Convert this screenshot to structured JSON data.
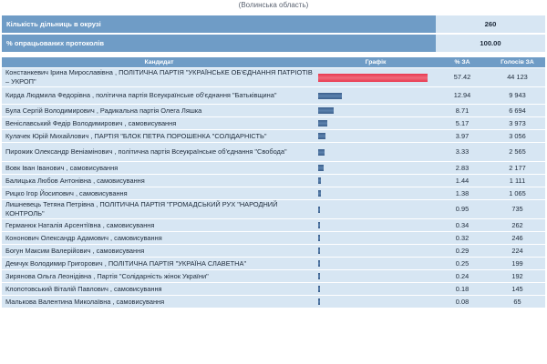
{
  "header": {
    "region": "(Волинська область)"
  },
  "summary": [
    {
      "label": "Кількість дільниць в окрузі",
      "value": "260"
    },
    {
      "label": "% опрацьованих протоколів",
      "value": "100.00"
    }
  ],
  "table": {
    "headers": {
      "candidate": "Кандидат",
      "graph": "Графік",
      "percent": "% ЗА",
      "votes": "Голосів ЗА"
    },
    "rows": [
      {
        "candidate": "Констанкевич Ірина Мирославівна , ПОЛІТИЧНА ПАРТІЯ \"УКРАЇНСЬКЕ ОБ'ЄДНАННЯ ПАТРІОТІВ – УКРОП\"",
        "percent": "57.42",
        "votes": "44 123",
        "share": 57.42,
        "lead": true
      },
      {
        "candidate": "Кирда Людмила Федорівна , політична партія Всеукраїнське об'єднання \"Батьківщина\"",
        "percent": "12.94",
        "votes": "9 943",
        "share": 12.94
      },
      {
        "candidate": "Була Сергій Володимирович , Радикальна партія Олега Ляшка",
        "percent": "8.71",
        "votes": "6 694",
        "share": 8.71
      },
      {
        "candidate": "Веніславський Федір Володимирович , самовисування",
        "percent": "5.17",
        "votes": "3 973",
        "share": 5.17
      },
      {
        "candidate": "Кулачек Юрій Михайлович , ПАРТІЯ \"БЛОК ПЕТРА ПОРОШЕНКА \"СОЛІДАРНІСТЬ\"",
        "percent": "3.97",
        "votes": "3 056",
        "share": 3.97
      },
      {
        "candidate": "Пирожик Олександр Веніамінович , політична партія Всеукраїнське об'єднання \"Свобода\"",
        "percent": "3.33",
        "votes": "2 565",
        "share": 3.33
      },
      {
        "candidate": "Вовк Іван Іванович , самовисування",
        "percent": "2.83",
        "votes": "2 177",
        "share": 2.83
      },
      {
        "candidate": "Балицька Любов Антонівна , самовисування",
        "percent": "1.44",
        "votes": "1 111",
        "share": 1.44
      },
      {
        "candidate": "Рицко Ігор Йосипович , самовисування",
        "percent": "1.38",
        "votes": "1 065",
        "share": 1.38
      },
      {
        "candidate": "Лишневець Тетяна Петрівна , ПОЛІТИЧНА ПАРТІЯ \"ГРОМАДСЬКИЙ РУХ \"НАРОДНИЙ КОНТРОЛЬ\"",
        "percent": "0.95",
        "votes": "735",
        "share": 0.95
      },
      {
        "candidate": "Германюк Наталія Арсентіївна , самовисування",
        "percent": "0.34",
        "votes": "262",
        "share": 0.34
      },
      {
        "candidate": "Кононович Олександр Адамович , самовисування",
        "percent": "0.32",
        "votes": "246",
        "share": 0.32
      },
      {
        "candidate": "Богун Максим Валерійович , самовисування",
        "percent": "0.29",
        "votes": "224",
        "share": 0.29
      },
      {
        "candidate": "Демчук Володимир Григорович , ПОЛІТИЧНА ПАРТІЯ \"УКРАЇНА СЛАВЕТНА\"",
        "percent": "0.25",
        "votes": "199",
        "share": 0.25
      },
      {
        "candidate": "Зирянова Ольга Леонідівна , Партія \"Солідарність жінок України\"",
        "percent": "0.24",
        "votes": "192",
        "share": 0.24
      },
      {
        "candidate": "Клопотовський Віталій Павлович , самовисування",
        "percent": "0.18",
        "votes": "145",
        "share": 0.18
      },
      {
        "candidate": "Малькова Валентина Миколаївна , самовисування",
        "percent": "0.08",
        "votes": "65",
        "share": 0.08
      }
    ]
  },
  "colors": {
    "header_bg": "#6f9cc6",
    "cell_bg": "#d7e6f3",
    "bar": "#4a6f9c",
    "lead_bar": "#e8384f"
  }
}
